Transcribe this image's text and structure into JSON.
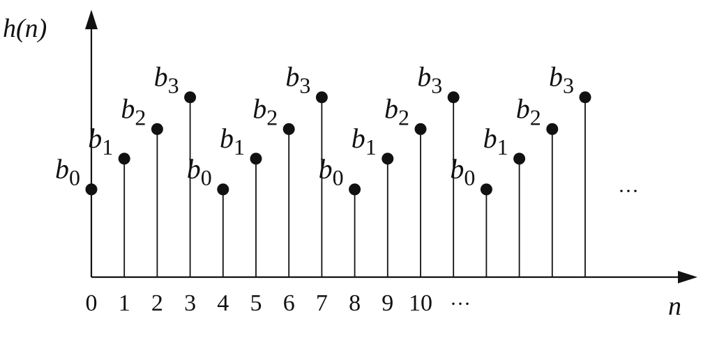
{
  "chart_data": {
    "type": "stem",
    "ylabel": "h(n)",
    "xlabel": "n",
    "x_tick_labels": [
      "0",
      "1",
      "2",
      "3",
      "4",
      "5",
      "6",
      "7",
      "8",
      "9",
      "10"
    ],
    "x_tick_ellipsis": "···",
    "continuation_ellipsis": "···",
    "points": [
      {
        "n": 0,
        "label": "b",
        "sub": "0",
        "level": 4
      },
      {
        "n": 1,
        "label": "b",
        "sub": "1",
        "level": 5.4
      },
      {
        "n": 2,
        "label": "b",
        "sub": "2",
        "level": 6.75
      },
      {
        "n": 3,
        "label": "b",
        "sub": "3",
        "level": 8.2
      },
      {
        "n": 4,
        "label": "b",
        "sub": "0",
        "level": 4
      },
      {
        "n": 5,
        "label": "b",
        "sub": "1",
        "level": 5.4
      },
      {
        "n": 6,
        "label": "b",
        "sub": "2",
        "level": 6.75
      },
      {
        "n": 7,
        "label": "b",
        "sub": "3",
        "level": 8.2
      },
      {
        "n": 8,
        "label": "b",
        "sub": "0",
        "level": 4
      },
      {
        "n": 9,
        "label": "b",
        "sub": "1",
        "level": 5.4
      },
      {
        "n": 10,
        "label": "b",
        "sub": "2",
        "level": 6.75
      },
      {
        "n": 11,
        "label": "b",
        "sub": "3",
        "level": 8.2
      },
      {
        "n": 12,
        "label": "b",
        "sub": "0",
        "level": 4
      },
      {
        "n": 13,
        "label": "b",
        "sub": "1",
        "level": 5.4
      },
      {
        "n": 14,
        "label": "b",
        "sub": "2",
        "level": 6.75
      },
      {
        "n": 15,
        "label": "b",
        "sub": "3",
        "level": 8.2
      }
    ],
    "ylim": [
      0,
      10
    ]
  }
}
